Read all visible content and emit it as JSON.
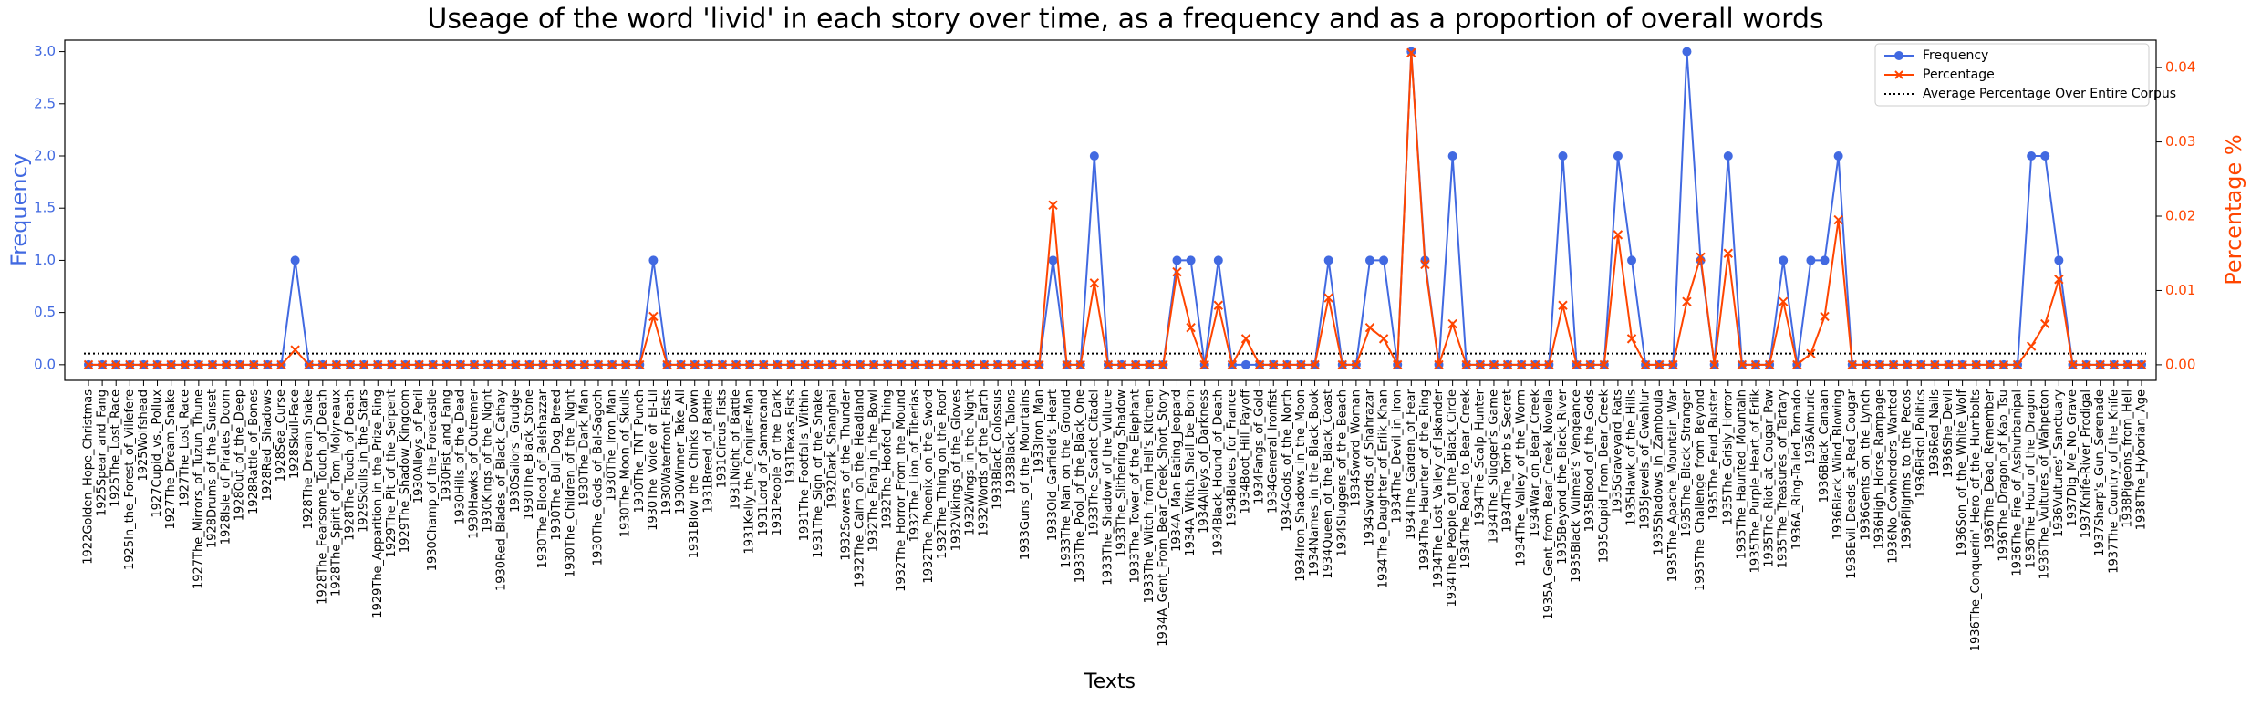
{
  "chart_data": {
    "type": "line",
    "title": "Useage of the word 'livid' in each story over time, as a frequency and as a proportion of overall words",
    "x_label": "Texts",
    "y_label": "Frequency",
    "y2_label": "Percentage %",
    "categories": [
      "1922Golden_Hope_Christmas",
      "1925Spear_and_Fang",
      "1925The_Lost_Race",
      "1925In_the_Forest_of_Villefere",
      "1925Wolfshead",
      "1927Cupid_vs._Pollux",
      "1927The_Dream_Snake",
      "1927The_Lost_Race",
      "1927The_Mirrors_of_Tuzun_Thune",
      "1928Drums_of_the_Sunset",
      "1928Isle_of_Pirates_Doom",
      "1928Out_of_the_Deep",
      "1928Rattle_of_Bones",
      "1928Red_Shadows",
      "1928Sea_Curse",
      "1928Skull-Face",
      "1928The_Dream_Snake",
      "1928The_Fearsome_Touch_of_Death",
      "1928The_Spirit_of_Tom_Molyneaux",
      "1928The_Touch_of_Death",
      "1929Skulls_in_the_Stars",
      "1929The_Apparition_in_the_Prize_Ring",
      "1929The_Pit_of_the_Serpent",
      "1929The_Shadow_Kingdom",
      "1930Alleys_of_Peril",
      "1930Champ_of_the_Forecastle",
      "1930Fist_and_Fang",
      "1930Hills_of_the_Dead",
      "1930Hawks_of_Outremer",
      "1930Kings_of_the_Night",
      "1930Red_Blades_of_Black_Cathay",
      "1930Sailors'_Grudge",
      "1930The_Black_Stone",
      "1930The_Blood_of_Belshazzar",
      "1930The_Bull_Dog_Breed",
      "1930The_Children_of_the_Night",
      "1930The_Dark_Man",
      "1930The_Gods_of_Bal-Sagoth",
      "1930The_Iron_Man",
      "1930The_Moon_of_Skulls",
      "1930The_TNT_Punch",
      "1930The_Voice_of_El-Lil",
      "1930Waterfront_Fists",
      "1930Winner_Take_All",
      "1931Blow_the_Chinks_Down",
      "1931Breed_of_Battle",
      "1931Circus_Fists",
      "1931Night_of_Battle",
      "1931Kelly_the_Conjure-Man",
      "1931Lord_of_Samarcand",
      "1931People_of_the_Dark",
      "1931Texas_Fists",
      "1931The_Footfalls_Within",
      "1931The_Sign_of_the_Snake",
      "1932Dark_Shanghai",
      "1932Sowers_of_the_Thunder",
      "1932The_Cairn_on_the_Headland",
      "1932The_Fang_in_the_Bowl",
      "1932The_Hoofed_Thing",
      "1932The_Horror_From_the_Mound",
      "1932The_Lion_of_Tiberias",
      "1932The_Phoenix_on_the_Sword",
      "1932The_Thing_on_the_Roof",
      "1932Vikings_of_the_Gloves",
      "1932Wings_in_the_Night",
      "1932Words_of_the_Earth",
      "1933Black_Colossus",
      "1933Black_Talons",
      "1933Guns_of_the_Mountains",
      "1933Iron_Man",
      "1933Old_Garfield's_Heart",
      "1933The_Man_on_the_Ground",
      "1933The_Pool_of_the_Black_One",
      "1933The_Scarlet_Citadel",
      "1933The_Shadow_of_the_Vulture",
      "1933The_Slithering_Shadow",
      "1933The_Tower_of_the_Elephant",
      "1933The_Witch_from_Hell's_Kitchen",
      "1934A_Gent_From_Bear_Creek_Short_Story",
      "1934A_Man-Eating_Jeopard",
      "1934A_Witch_Shall_be_Born",
      "1934Alleys_of_Darkness",
      "1934Black_Hound_of_Death",
      "1934Blades_for_France",
      "1934Boot_Hill_Payoff",
      "1934Fangs_of_Gold",
      "1934General_Ironfist",
      "1934Gods_of_the_North",
      "1934Iron_Shadows_in_the_Moon",
      "1934Names_in_the_Black_Book",
      "1934Queen_of_the_Black_Coast",
      "1934Sluggers_of_the_Beach",
      "1934Sword_Woman",
      "1934Swords_of_Shahrazar",
      "1934The_Daughter_of_Erlik_Khan",
      "1934The_Devil_in_Iron",
      "1934The_Garden_of_Fear",
      "1934The_Haunter_of_the_Ring",
      "1934The_Lost_Valley_of_Iskander",
      "1934The_People_of_the_Black_Circle",
      "1934The_Road_to_Bear_Creek",
      "1934The_Scalp_Hunter",
      "1934The_Slugger's_Game",
      "1934The_Tomb's_Secret",
      "1934The_Valley_of_the_Worm",
      "1934War_on_Bear_Creek",
      "1935A_Gent_from_Bear_Creek_Novella",
      "1935Beyond_the_Black_River",
      "1935Black_Vulmea's_Vengeance",
      "1935Blood_of_the_Gods",
      "1935Cupid_From_Bear_Creek",
      "1935Graveyard_Rats",
      "1935Hawk_of_the_Hills",
      "1935Jewels_of_Gwahlur",
      "1935Shadows_in_Zamboula",
      "1935The_Apache_Mountain_War",
      "1935The_Black_Stranger",
      "1935The_Challenge_from_Beyond",
      "1935The_Feud_Buster",
      "1935The_Grisly_Horror",
      "1935The_Haunted_Mountain",
      "1935The_Purple_Heart_of_Erlik",
      "1935The_Riot_at_Cougar_Paw",
      "1935The_Treasures_of_Tartary",
      "1936A_Ring-Tailed_Tornado",
      "1936Almuric",
      "1936Black_Canaan",
      "1936Black_Wind_Blowing",
      "1936Evil_Deeds_at_Red_Cougar",
      "1936Gents_on_the_Lynch",
      "1936High_Horse_Rampage",
      "1936No_Cowherders_Wanted",
      "1936Pilgrims_to_the_Pecos",
      "1936Pistol_Politics",
      "1936Red_Nails",
      "1936She_Devil",
      "1936Son_of_the_White_Wolf",
      "1936The_Conquerin'_Hero_of_the_Humbolts",
      "1936The_Dead_Remember",
      "1936The_Dragon_of_Kao_Tsu",
      "1936The_Fire_of_Asshurbanipal",
      "1936The_Hour_of_the_Dragon",
      "1936The_Vultures_of_Wahpeton",
      "1936Vultures'_Sanctuary",
      "1937Dig_Me_No_Grave",
      "1937Knife-River_Prodigal",
      "1937Sharp's_Gun_Serenade",
      "1937The_Country_of_the_Knife",
      "1938Pigeons_from_Hell",
      "1938The_Hyborian_Age"
    ],
    "series": [
      {
        "name": "Frequency",
        "color": "#4169e1",
        "marker": "circle",
        "values": [
          0,
          0,
          0,
          0,
          0,
          0,
          0,
          0,
          0,
          0,
          0,
          0,
          0,
          0,
          0,
          1,
          0,
          0,
          0,
          0,
          0,
          0,
          0,
          0,
          0,
          0,
          0,
          0,
          0,
          0,
          0,
          0,
          0,
          0,
          0,
          0,
          0,
          0,
          0,
          0,
          0,
          1,
          0,
          0,
          0,
          0,
          0,
          0,
          0,
          0,
          0,
          0,
          0,
          0,
          0,
          0,
          0,
          0,
          0,
          0,
          0,
          0,
          0,
          0,
          0,
          0,
          0,
          0,
          0,
          0,
          1,
          0,
          0,
          2,
          0,
          0,
          0,
          0,
          0,
          1,
          1,
          0,
          1,
          0,
          0,
          0,
          0,
          0,
          0,
          0,
          1,
          0,
          0,
          1,
          1,
          0,
          3,
          1,
          0,
          2,
          0,
          0,
          0,
          0,
          0,
          0,
          0,
          2,
          0,
          0,
          0,
          2,
          1,
          0,
          0,
          0,
          3,
          1,
          0,
          2,
          0,
          0,
          0,
          1,
          0,
          1,
          1,
          2,
          0,
          0,
          0,
          0,
          0,
          0,
          0,
          0,
          0,
          0,
          0,
          0,
          0,
          2,
          2,
          1,
          0,
          0,
          0,
          0,
          0,
          0
        ]
      },
      {
        "name": "Percentage",
        "color": "#ff4500",
        "marker": "x",
        "axis": "y2",
        "values": [
          0,
          0,
          0,
          0,
          0,
          0,
          0,
          0,
          0,
          0,
          0,
          0,
          0,
          0,
          0,
          0.002,
          0,
          0,
          0,
          0,
          0,
          0,
          0,
          0,
          0,
          0,
          0,
          0,
          0,
          0,
          0,
          0,
          0,
          0,
          0,
          0,
          0,
          0,
          0,
          0,
          0,
          0.0065,
          0,
          0,
          0,
          0,
          0,
          0,
          0,
          0,
          0,
          0,
          0,
          0,
          0,
          0,
          0,
          0,
          0,
          0,
          0,
          0,
          0,
          0,
          0,
          0,
          0,
          0,
          0,
          0,
          0.0215,
          0,
          0,
          0.011,
          0,
          0,
          0,
          0,
          0,
          0.0125,
          0.005,
          0,
          0.008,
          0,
          0.0035,
          0,
          0,
          0,
          0,
          0,
          0.009,
          0,
          0,
          0.005,
          0.0035,
          0,
          0.042,
          0.0135,
          0,
          0.0055,
          0,
          0,
          0,
          0,
          0,
          0,
          0,
          0.008,
          0,
          0,
          0,
          0.0175,
          0.0035,
          0,
          0,
          0,
          0.0085,
          0.0145,
          0,
          0.015,
          0,
          0,
          0,
          0.0085,
          0,
          0.0015,
          0.0065,
          0.0195,
          0,
          0,
          0,
          0,
          0,
          0,
          0,
          0,
          0,
          0,
          0,
          0,
          0,
          0.0025,
          0.0055,
          0.0115,
          0,
          0,
          0,
          0,
          0,
          0
        ]
      }
    ],
    "average": {
      "name": "Average Percentage Over Entire Corpus",
      "value": 0.0015,
      "color": "#000000",
      "axis": "y2"
    },
    "ylim": [
      -0.15,
      3.11
    ],
    "yticks": [
      {
        "value": 0,
        "label": "0.0"
      },
      0.5,
      {
        "value": 1,
        "label": "1.0"
      },
      1.5,
      {
        "value": 2,
        "label": "2.0"
      },
      2.5,
      {
        "value": 3,
        "label": "3.0"
      }
    ],
    "y2lim": [
      -0.0021,
      0.0437
    ],
    "y2ticks": [
      {
        "value": 0,
        "label": "0.00"
      },
      0.01,
      0.02,
      0.03,
      0.04
    ],
    "legend": "upper right",
    "grid": false
  }
}
